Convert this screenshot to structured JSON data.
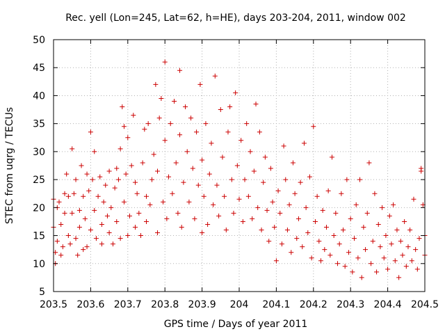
{
  "chart_data": {
    "type": "scatter",
    "title": "Rec. yell (Lon=245, Lat=62, h=HE), days 203-204, 2011, window 002",
    "xlabel": "GPS time / Days of year 2011",
    "ylabel": "STEC from uqrg / TECUs",
    "xlim": [
      203.5,
      204.5
    ],
    "ylim": [
      5,
      50
    ],
    "xticks": [
      "203.5",
      "203.6",
      "203.7",
      "203.8",
      "203.9",
      "204",
      "204.1",
      "204.2",
      "204.3",
      "204.4",
      "204.5"
    ],
    "yticks": [
      "5",
      "10",
      "15",
      "20",
      "25",
      "30",
      "35",
      "40",
      "45",
      "50"
    ],
    "grid": true,
    "marker": "plus",
    "color": "#cc0000",
    "series": [
      {
        "points": [
          [
            203.5,
            21.5
          ],
          [
            203.5,
            16.5
          ],
          [
            203.505,
            12.0
          ],
          [
            203.505,
            10.0
          ],
          [
            203.51,
            20.0
          ],
          [
            203.51,
            14.0
          ],
          [
            203.515,
            21.0
          ],
          [
            203.52,
            11.5
          ],
          [
            203.52,
            17.0
          ],
          [
            203.525,
            13.0
          ],
          [
            203.53,
            22.5
          ],
          [
            203.53,
            19.0
          ],
          [
            203.535,
            26.0
          ],
          [
            203.54,
            15.0
          ],
          [
            203.54,
            22.0
          ],
          [
            203.545,
            13.5
          ],
          [
            203.55,
            30.5
          ],
          [
            203.55,
            19.0
          ],
          [
            203.555,
            22.5
          ],
          [
            203.56,
            14.5
          ],
          [
            203.56,
            25.0
          ],
          [
            203.565,
            11.5
          ],
          [
            203.57,
            19.5
          ],
          [
            203.57,
            16.5
          ],
          [
            203.575,
            27.5
          ],
          [
            203.58,
            12.5
          ],
          [
            203.58,
            22.0
          ],
          [
            203.585,
            18.0
          ],
          [
            203.59,
            26.0
          ],
          [
            203.59,
            13.0
          ],
          [
            203.595,
            23.0
          ],
          [
            203.6,
            33.5
          ],
          [
            203.6,
            16.0
          ],
          [
            203.605,
            25.0
          ],
          [
            203.61,
            19.5
          ],
          [
            203.61,
            30.0
          ],
          [
            203.615,
            14.5
          ],
          [
            203.62,
            22.0
          ],
          [
            203.625,
            25.5
          ],
          [
            203.63,
            17.0
          ],
          [
            203.63,
            13.5
          ],
          [
            203.635,
            21.0
          ],
          [
            203.64,
            24.0
          ],
          [
            203.645,
            18.5
          ],
          [
            203.65,
            15.5
          ],
          [
            203.65,
            26.5
          ],
          [
            203.655,
            20.0
          ],
          [
            203.66,
            13.5
          ],
          [
            203.665,
            23.5
          ],
          [
            203.67,
            17.5
          ],
          [
            203.67,
            27.0
          ],
          [
            203.675,
            25.0
          ],
          [
            203.68,
            30.5
          ],
          [
            203.68,
            14.5
          ],
          [
            203.685,
            38.0
          ],
          [
            203.69,
            34.5
          ],
          [
            203.69,
            21.0
          ],
          [
            203.695,
            26.0
          ],
          [
            203.7,
            32.5
          ],
          [
            203.7,
            15.0
          ],
          [
            203.705,
            18.5
          ],
          [
            203.71,
            27.5
          ],
          [
            203.715,
            36.5
          ],
          [
            203.72,
            24.5
          ],
          [
            203.72,
            16.5
          ],
          [
            203.725,
            22.5
          ],
          [
            203.73,
            19.0
          ],
          [
            203.735,
            15.0
          ],
          [
            203.74,
            28.0
          ],
          [
            203.745,
            34.0
          ],
          [
            203.75,
            22.0
          ],
          [
            203.75,
            17.5
          ],
          [
            203.755,
            35.0
          ],
          [
            203.76,
            20.5
          ],
          [
            203.765,
            25.0
          ],
          [
            203.77,
            29.5
          ],
          [
            203.775,
            42.0
          ],
          [
            203.78,
            15.5
          ],
          [
            203.78,
            26.5
          ],
          [
            203.785,
            36.0
          ],
          [
            203.79,
            39.5
          ],
          [
            203.795,
            21.0
          ],
          [
            203.8,
            46.0
          ],
          [
            203.8,
            32.0
          ],
          [
            203.805,
            18.0
          ],
          [
            203.81,
            25.5
          ],
          [
            203.815,
            35.0
          ],
          [
            203.82,
            22.5
          ],
          [
            203.825,
            39.0
          ],
          [
            203.83,
            28.0
          ],
          [
            203.835,
            19.0
          ],
          [
            203.84,
            44.5
          ],
          [
            203.84,
            33.0
          ],
          [
            203.845,
            16.5
          ],
          [
            203.85,
            24.5
          ],
          [
            203.855,
            38.0
          ],
          [
            203.86,
            30.0
          ],
          [
            203.865,
            21.0
          ],
          [
            203.87,
            36.0
          ],
          [
            203.875,
            27.0
          ],
          [
            203.88,
            18.0
          ],
          [
            203.885,
            33.5
          ],
          [
            203.89,
            24.0
          ],
          [
            203.895,
            42.0
          ],
          [
            203.9,
            15.5
          ],
          [
            203.9,
            28.5
          ],
          [
            203.905,
            22.0
          ],
          [
            203.91,
            35.0
          ],
          [
            203.915,
            17.0
          ],
          [
            203.92,
            26.0
          ],
          [
            203.925,
            31.5
          ],
          [
            203.93,
            20.5
          ],
          [
            203.935,
            43.5
          ],
          [
            203.94,
            24.0
          ],
          [
            203.945,
            18.5
          ],
          [
            203.95,
            37.5
          ],
          [
            203.955,
            29.0
          ],
          [
            203.96,
            22.0
          ],
          [
            203.965,
            16.0
          ],
          [
            203.97,
            33.5
          ],
          [
            203.975,
            38.0
          ],
          [
            203.98,
            25.0
          ],
          [
            203.985,
            19.0
          ],
          [
            203.99,
            40.5
          ],
          [
            203.995,
            27.5
          ],
          [
            204.0,
            21.5
          ],
          [
            204.005,
            32.0
          ],
          [
            204.01,
            17.5
          ],
          [
            204.015,
            25.0
          ],
          [
            204.02,
            35.0
          ],
          [
            204.025,
            22.0
          ],
          [
            204.03,
            30.0
          ],
          [
            204.035,
            18.0
          ],
          [
            204.04,
            26.5
          ],
          [
            204.045,
            38.5
          ],
          [
            204.05,
            20.0
          ],
          [
            204.055,
            33.5
          ],
          [
            204.06,
            16.0
          ],
          [
            204.065,
            24.5
          ],
          [
            204.07,
            29.0
          ],
          [
            204.075,
            19.5
          ],
          [
            204.08,
            14.0
          ],
          [
            204.085,
            27.0
          ],
          [
            204.09,
            21.0
          ],
          [
            204.095,
            16.5
          ],
          [
            204.1,
            10.5
          ],
          [
            204.105,
            23.0
          ],
          [
            204.11,
            19.0
          ],
          [
            204.115,
            13.5
          ],
          [
            204.12,
            31.0
          ],
          [
            204.125,
            25.0
          ],
          [
            204.13,
            16.0
          ],
          [
            204.135,
            20.5
          ],
          [
            204.14,
            12.0
          ],
          [
            204.145,
            28.0
          ],
          [
            204.15,
            22.5
          ],
          [
            204.155,
            14.5
          ],
          [
            204.16,
            18.0
          ],
          [
            204.165,
            24.5
          ],
          [
            204.17,
            13.0
          ],
          [
            204.175,
            31.5
          ],
          [
            204.18,
            20.0
          ],
          [
            204.185,
            15.5
          ],
          [
            204.19,
            25.5
          ],
          [
            204.195,
            11.0
          ],
          [
            204.2,
            34.5
          ],
          [
            204.205,
            17.5
          ],
          [
            204.21,
            22.0
          ],
          [
            204.215,
            14.0
          ],
          [
            204.22,
            10.5
          ],
          [
            204.225,
            19.5
          ],
          [
            204.23,
            12.5
          ],
          [
            204.235,
            16.5
          ],
          [
            204.24,
            23.0
          ],
          [
            204.245,
            11.5
          ],
          [
            204.25,
            29.0
          ],
          [
            204.255,
            15.0
          ],
          [
            204.26,
            19.0
          ],
          [
            204.265,
            10.0
          ],
          [
            204.27,
            13.5
          ],
          [
            204.275,
            22.5
          ],
          [
            204.28,
            16.0
          ],
          [
            204.285,
            9.5
          ],
          [
            204.29,
            25.0
          ],
          [
            204.295,
            12.0
          ],
          [
            204.3,
            18.0
          ],
          [
            204.305,
            8.5
          ],
          [
            204.31,
            14.5
          ],
          [
            204.315,
            20.5
          ],
          [
            204.32,
            11.0
          ],
          [
            204.325,
            25.0
          ],
          [
            204.33,
            7.5
          ],
          [
            204.335,
            16.5
          ],
          [
            204.34,
            12.5
          ],
          [
            204.345,
            19.0
          ],
          [
            204.35,
            28.0
          ],
          [
            204.355,
            10.0
          ],
          [
            204.36,
            14.0
          ],
          [
            204.365,
            22.5
          ],
          [
            204.37,
            8.5
          ],
          [
            204.375,
            17.0
          ],
          [
            204.38,
            13.0
          ],
          [
            204.385,
            20.0
          ],
          [
            204.39,
            11.0
          ],
          [
            204.395,
            15.0
          ],
          [
            204.4,
            9.0
          ],
          [
            204.405,
            18.5
          ],
          [
            204.41,
            13.5
          ],
          [
            204.415,
            20.5
          ],
          [
            204.42,
            10.5
          ],
          [
            204.425,
            16.0
          ],
          [
            204.43,
            7.5
          ],
          [
            204.435,
            14.0
          ],
          [
            204.44,
            11.5
          ],
          [
            204.445,
            17.5
          ],
          [
            204.45,
            9.5
          ],
          [
            204.455,
            13.0
          ],
          [
            204.46,
            16.0
          ],
          [
            204.465,
            10.5
          ],
          [
            204.47,
            21.5
          ],
          [
            204.475,
            12.5
          ],
          [
            204.48,
            9.0
          ],
          [
            204.485,
            14.5
          ],
          [
            204.49,
            26.5
          ],
          [
            204.49,
            27.0
          ],
          [
            204.495,
            20.5
          ],
          [
            204.5,
            11.5
          ],
          [
            204.5,
            15.0
          ]
        ]
      }
    ]
  }
}
